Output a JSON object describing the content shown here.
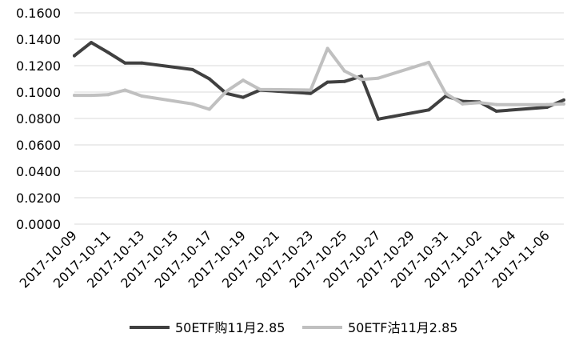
{
  "chart_data": {
    "type": "line",
    "x": [
      "2017-10-09",
      "2017-10-10",
      "2017-10-11",
      "2017-10-12",
      "2017-10-13",
      "2017-10-16",
      "2017-10-17",
      "2017-10-18",
      "2017-10-19",
      "2017-10-20",
      "2017-10-23",
      "2017-10-24",
      "2017-10-25",
      "2017-10-26",
      "2017-10-27",
      "2017-10-30",
      "2017-10-31",
      "2017-11-01",
      "2017-11-02",
      "2017-11-03",
      "2017-11-06",
      "2017-11-07"
    ],
    "date_range": [
      "2017-10-09",
      "2017-11-07"
    ],
    "x_tick_labels": [
      "2017-10-09",
      "2017-10-11",
      "2017-10-13",
      "2017-10-15",
      "2017-10-17",
      "2017-10-19",
      "2017-10-21",
      "2017-10-23",
      "2017-10-25",
      "2017-10-27",
      "2017-10-29",
      "2017-10-31",
      "2017-11-02",
      "2017-11-04",
      "2017-11-06"
    ],
    "y_tick_labels": [
      "0.0000",
      "0.0200",
      "0.0400",
      "0.0600",
      "0.0800",
      "0.1000",
      "0.1200",
      "0.1400",
      "0.1600"
    ],
    "ylim": [
      0,
      0.16
    ],
    "grid": true,
    "legend_position": "bottom",
    "series": [
      {
        "name": "50ETF购11月2.85",
        "color": "#404040",
        "values": [
          0.1275,
          0.1375,
          0.13,
          0.122,
          0.122,
          0.117,
          0.11,
          0.099,
          0.096,
          0.1015,
          0.099,
          0.1075,
          0.108,
          0.112,
          0.0795,
          0.0865,
          0.097,
          0.093,
          0.0925,
          0.0855,
          0.0885,
          0.094
        ]
      },
      {
        "name": "50ETF沽11月2.85",
        "color": "#c0c0c0",
        "values": [
          0.0975,
          0.0975,
          0.098,
          0.1015,
          0.097,
          0.091,
          0.087,
          0.1005,
          0.109,
          0.102,
          0.1015,
          0.133,
          0.116,
          0.1095,
          0.1105,
          0.1225,
          0.099,
          0.091,
          0.092,
          0.0905,
          0.0905,
          0.091
        ]
      }
    ]
  }
}
